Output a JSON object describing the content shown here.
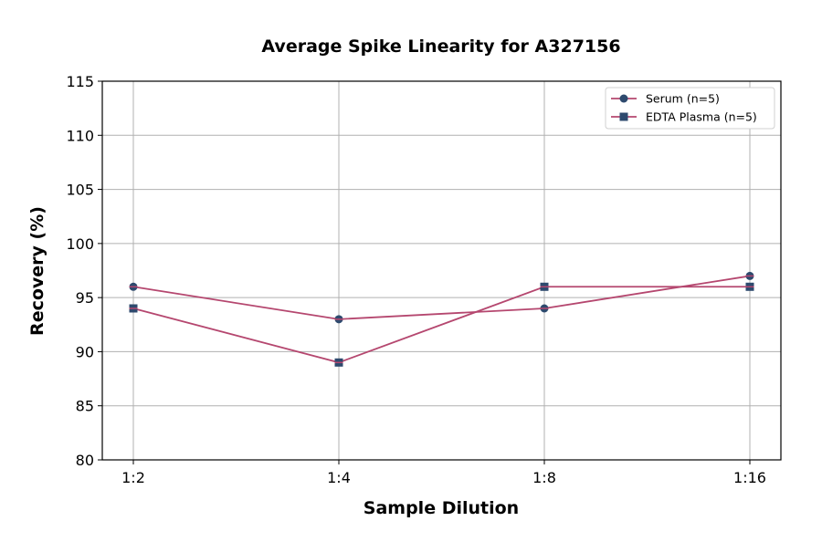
{
  "chart_data": {
    "type": "line",
    "title": "Average Spike Linearity for A327156",
    "xlabel": "Sample Dilution",
    "ylabel": "Recovery (%)",
    "categories": [
      "1:2",
      "1:4",
      "1:8",
      "1:16"
    ],
    "ylim": [
      80,
      115
    ],
    "yticks": [
      80,
      85,
      90,
      95,
      100,
      105,
      110,
      115
    ],
    "grid": true,
    "legend_position": "top-right",
    "series": [
      {
        "name": "Serum (n=5)",
        "marker": "circle",
        "values": [
          96,
          93,
          94,
          97
        ]
      },
      {
        "name": "EDTA Plasma (n=5)",
        "marker": "square",
        "values": [
          94,
          89,
          96,
          96
        ]
      }
    ],
    "colors": {
      "line": "#b5476f",
      "marker": "#2e4a6e",
      "grid": "#b0b0b0"
    }
  }
}
